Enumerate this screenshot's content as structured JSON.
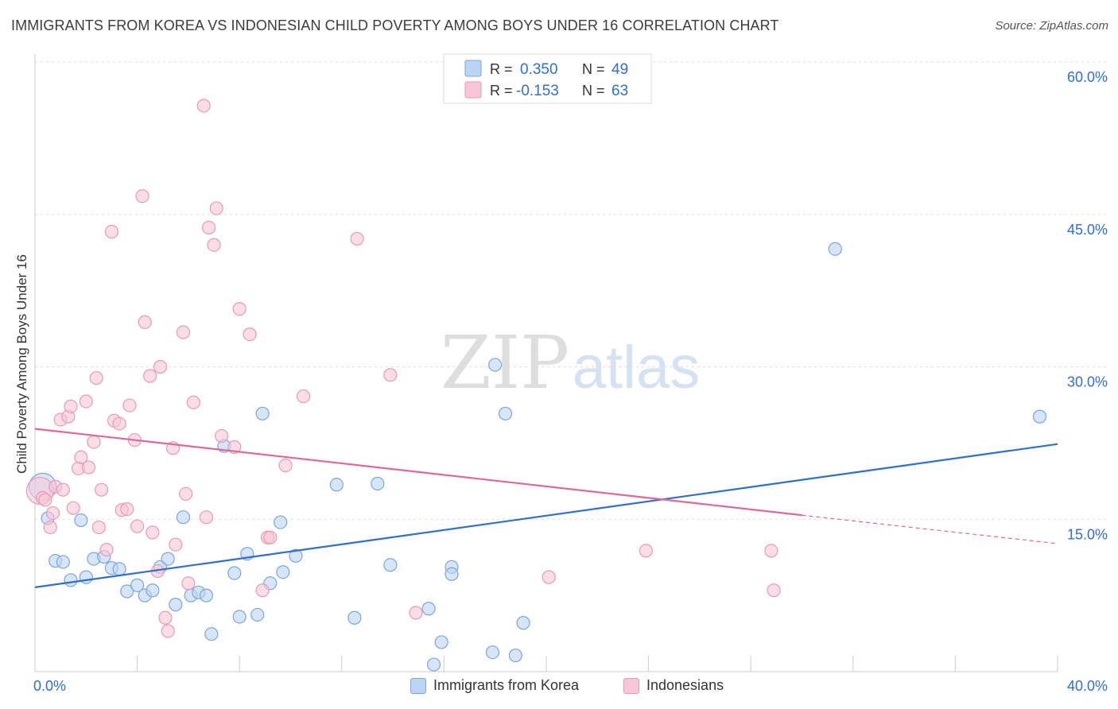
{
  "header": {
    "title": "IMMIGRANTS FROM KOREA VS INDONESIAN CHILD POVERTY AMONG BOYS UNDER 16 CORRELATION CHART",
    "source": "Source: ZipAtlas.com"
  },
  "watermark": {
    "zip": "ZIP",
    "atlas": "atlas"
  },
  "chart_data": {
    "type": "scatter",
    "ylabel": "Child Poverty Among Boys Under 16",
    "xlim": [
      0,
      40
    ],
    "ylim": [
      0,
      60
    ],
    "x_tick_labels": [
      {
        "value": 0,
        "label": "0.0%"
      },
      {
        "value": 40,
        "label": "40.0%"
      }
    ],
    "y_tick_labels": [
      {
        "value": 15,
        "label": "15.0%"
      },
      {
        "value": 30,
        "label": "30.0%"
      },
      {
        "value": 45,
        "label": "45.0%"
      },
      {
        "value": 60,
        "label": "60.0%"
      }
    ],
    "grid": true,
    "legend_position": "top-center",
    "colors": {
      "korea_fill": "#bcd4f4",
      "korea_stroke": "#7aa6e0",
      "korea_line": "#2e6fd1",
      "indo_fill": "#f8c6d6",
      "indo_stroke": "#e99ab4",
      "indo_line": "#e06896",
      "value_text": "#2e6fd1"
    },
    "legend": [
      {
        "r_label": "R =",
        "r_value": "0.350",
        "n_label": "N =",
        "n_value": "49"
      },
      {
        "r_label": "R =",
        "r_value": "-0.153",
        "n_label": "N =",
        "n_value": "63"
      }
    ],
    "series": [
      {
        "name": "Immigrants from Korea",
        "trend": {
          "x": [
            0,
            40
          ],
          "y": [
            8.3,
            22.4
          ]
        },
        "points": [
          {
            "x": 0.3,
            "y": 18.2,
            "big": true
          },
          {
            "x": 0.5,
            "y": 15.1
          },
          {
            "x": 0.8,
            "y": 10.9
          },
          {
            "x": 1.1,
            "y": 10.8
          },
          {
            "x": 1.4,
            "y": 9.0
          },
          {
            "x": 1.8,
            "y": 14.9
          },
          {
            "x": 2.0,
            "y": 9.3
          },
          {
            "x": 2.3,
            "y": 11.1
          },
          {
            "x": 2.7,
            "y": 11.3
          },
          {
            "x": 3.0,
            "y": 10.2
          },
          {
            "x": 3.3,
            "y": 10.1
          },
          {
            "x": 3.6,
            "y": 7.9
          },
          {
            "x": 4.0,
            "y": 8.5
          },
          {
            "x": 4.3,
            "y": 7.5
          },
          {
            "x": 4.6,
            "y": 8.0
          },
          {
            "x": 4.9,
            "y": 10.3
          },
          {
            "x": 5.2,
            "y": 11.1
          },
          {
            "x": 5.5,
            "y": 6.6
          },
          {
            "x": 5.8,
            "y": 15.2
          },
          {
            "x": 6.1,
            "y": 7.5
          },
          {
            "x": 6.4,
            "y": 7.8
          },
          {
            "x": 6.7,
            "y": 7.5
          },
          {
            "x": 6.9,
            "y": 3.7
          },
          {
            "x": 7.4,
            "y": 22.2
          },
          {
            "x": 7.8,
            "y": 9.7
          },
          {
            "x": 8.0,
            "y": 5.4
          },
          {
            "x": 8.3,
            "y": 11.6
          },
          {
            "x": 8.7,
            "y": 5.6
          },
          {
            "x": 8.9,
            "y": 25.4
          },
          {
            "x": 9.2,
            "y": 8.7
          },
          {
            "x": 9.6,
            "y": 14.7
          },
          {
            "x": 9.7,
            "y": 9.8
          },
          {
            "x": 10.2,
            "y": 11.4
          },
          {
            "x": 11.8,
            "y": 18.4
          },
          {
            "x": 12.5,
            "y": 5.3
          },
          {
            "x": 13.4,
            "y": 18.5
          },
          {
            "x": 13.9,
            "y": 10.5
          },
          {
            "x": 15.4,
            "y": 6.2
          },
          {
            "x": 15.6,
            "y": 0.7
          },
          {
            "x": 15.9,
            "y": 2.9
          },
          {
            "x": 16.3,
            "y": 10.3
          },
          {
            "x": 16.3,
            "y": 9.6
          },
          {
            "x": 17.9,
            "y": 1.9
          },
          {
            "x": 18.0,
            "y": 30.2
          },
          {
            "x": 18.4,
            "y": 25.4
          },
          {
            "x": 18.8,
            "y": 1.6
          },
          {
            "x": 19.1,
            "y": 4.8
          },
          {
            "x": 31.3,
            "y": 41.6
          },
          {
            "x": 39.3,
            "y": 25.1
          }
        ]
      },
      {
        "name": "Indonesians",
        "trend": {
          "x": [
            0,
            30
          ],
          "y": [
            23.9,
            15.4
          ]
        },
        "trend_dashed": {
          "x": [
            30,
            40
          ],
          "y": [
            15.4,
            12.6
          ]
        },
        "points": [
          {
            "x": 0.2,
            "y": 17.8,
            "big": true
          },
          {
            "x": 0.3,
            "y": 17.1
          },
          {
            "x": 0.4,
            "y": 16.9
          },
          {
            "x": 0.6,
            "y": 14.2
          },
          {
            "x": 0.7,
            "y": 15.6
          },
          {
            "x": 0.8,
            "y": 18.2
          },
          {
            "x": 1.0,
            "y": 24.8
          },
          {
            "x": 1.1,
            "y": 17.9
          },
          {
            "x": 1.3,
            "y": 25.1
          },
          {
            "x": 1.4,
            "y": 26.1
          },
          {
            "x": 1.5,
            "y": 16.1
          },
          {
            "x": 1.7,
            "y": 20.0
          },
          {
            "x": 1.8,
            "y": 21.1
          },
          {
            "x": 2.0,
            "y": 26.6
          },
          {
            "x": 2.1,
            "y": 20.1
          },
          {
            "x": 2.3,
            "y": 22.6
          },
          {
            "x": 2.4,
            "y": 28.9
          },
          {
            "x": 2.5,
            "y": 14.2
          },
          {
            "x": 2.6,
            "y": 17.9
          },
          {
            "x": 2.8,
            "y": 12.0
          },
          {
            "x": 3.0,
            "y": 43.3
          },
          {
            "x": 3.1,
            "y": 24.7
          },
          {
            "x": 3.3,
            "y": 24.4
          },
          {
            "x": 3.4,
            "y": 15.9
          },
          {
            "x": 3.6,
            "y": 16.0
          },
          {
            "x": 3.7,
            "y": 26.2
          },
          {
            "x": 3.9,
            "y": 22.8
          },
          {
            "x": 4.0,
            "y": 14.3
          },
          {
            "x": 4.2,
            "y": 46.8
          },
          {
            "x": 4.3,
            "y": 34.4
          },
          {
            "x": 4.5,
            "y": 29.1
          },
          {
            "x": 4.6,
            "y": 13.7
          },
          {
            "x": 4.8,
            "y": 9.9
          },
          {
            "x": 4.9,
            "y": 30.0
          },
          {
            "x": 5.1,
            "y": 5.3
          },
          {
            "x": 5.2,
            "y": 4.0
          },
          {
            "x": 5.4,
            "y": 22.0
          },
          {
            "x": 5.5,
            "y": 12.5
          },
          {
            "x": 5.8,
            "y": 33.4
          },
          {
            "x": 5.9,
            "y": 17.5
          },
          {
            "x": 6.0,
            "y": 8.7
          },
          {
            "x": 6.2,
            "y": 26.5
          },
          {
            "x": 6.6,
            "y": 55.7
          },
          {
            "x": 6.7,
            "y": 15.2
          },
          {
            "x": 6.8,
            "y": 43.7
          },
          {
            "x": 7.0,
            "y": 42.0
          },
          {
            "x": 7.1,
            "y": 45.6
          },
          {
            "x": 7.3,
            "y": 23.2
          },
          {
            "x": 7.8,
            "y": 22.1
          },
          {
            "x": 8.0,
            "y": 35.7
          },
          {
            "x": 8.4,
            "y": 33.2
          },
          {
            "x": 8.9,
            "y": 8.0
          },
          {
            "x": 9.1,
            "y": 13.2
          },
          {
            "x": 9.2,
            "y": 13.2
          },
          {
            "x": 9.8,
            "y": 20.3
          },
          {
            "x": 10.5,
            "y": 27.1
          },
          {
            "x": 12.6,
            "y": 42.6
          },
          {
            "x": 13.9,
            "y": 29.2
          },
          {
            "x": 14.9,
            "y": 5.8
          },
          {
            "x": 20.1,
            "y": 9.3
          },
          {
            "x": 23.9,
            "y": 11.9
          },
          {
            "x": 28.8,
            "y": 11.9
          },
          {
            "x": 28.9,
            "y": 8.0
          }
        ]
      }
    ]
  }
}
